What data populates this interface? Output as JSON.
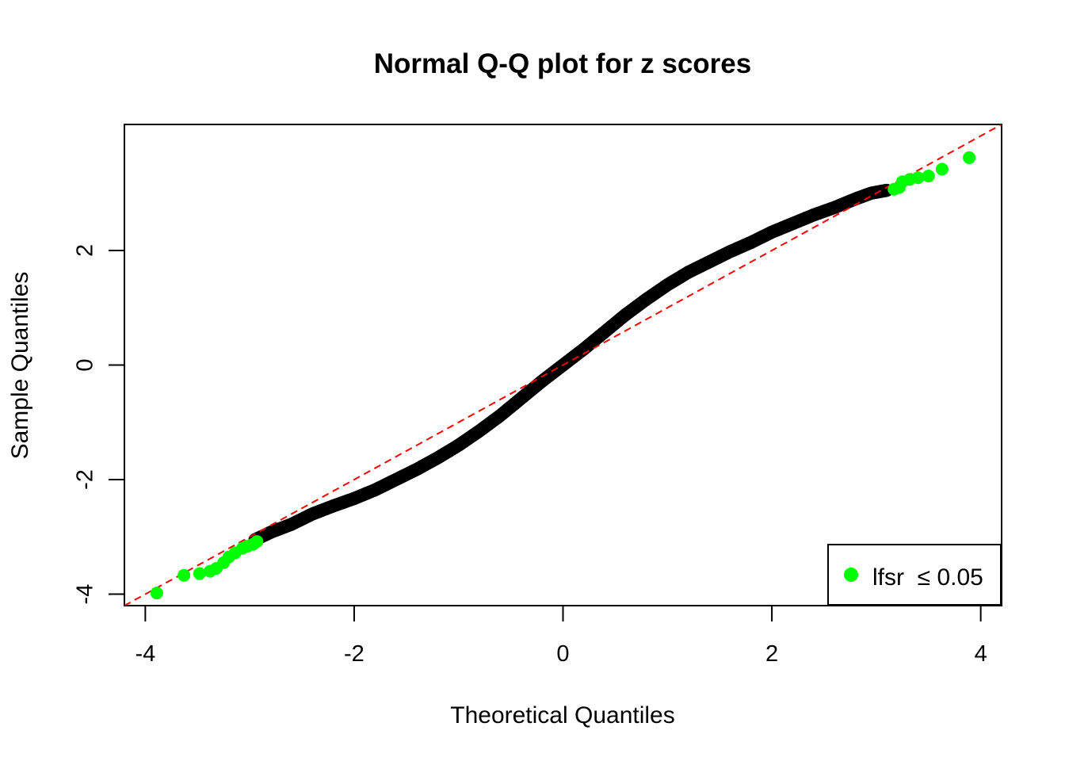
{
  "chart_data": {
    "type": "scatter",
    "title": "Normal Q-Q plot for z scores",
    "xlabel": "Theoretical Quantiles",
    "ylabel": "Sample Quantiles",
    "xlim": [
      -4.2,
      4.2
    ],
    "ylim": [
      -4.2,
      4.2
    ],
    "x_ticks": [
      -4,
      -2,
      0,
      2,
      4
    ],
    "y_ticks": [
      -4,
      -2,
      0,
      2
    ],
    "x_tick_labels": [
      "-4",
      "-2",
      "0",
      "2",
      "4"
    ],
    "y_tick_labels": [
      "-4",
      "-2",
      "0",
      "2"
    ],
    "grid": false,
    "legend": {
      "position": "bottom-right",
      "entries": [
        {
          "label": "lfsr  ≤ 0.05",
          "color": "#00ff00",
          "marker": "filled-circle"
        }
      ]
    },
    "reference_line": {
      "intercept": 0,
      "slope": 1,
      "style": "dashed",
      "color": "#ff0000"
    },
    "series": [
      {
        "color": "#000000",
        "marker": "circle",
        "description_points": "dense curve of points",
        "points": [
          [
            -2.95,
            -3.05
          ],
          [
            -2.8,
            -2.92
          ],
          [
            -2.6,
            -2.78
          ],
          [
            -2.4,
            -2.6
          ],
          [
            -2.2,
            -2.46
          ],
          [
            -2.0,
            -2.33
          ],
          [
            -1.8,
            -2.18
          ],
          [
            -1.6,
            -2.0
          ],
          [
            -1.4,
            -1.82
          ],
          [
            -1.2,
            -1.62
          ],
          [
            -1.0,
            -1.4
          ],
          [
            -0.8,
            -1.15
          ],
          [
            -0.6,
            -0.88
          ],
          [
            -0.4,
            -0.58
          ],
          [
            -0.2,
            -0.28
          ],
          [
            0.0,
            0.0
          ],
          [
            0.2,
            0.28
          ],
          [
            0.4,
            0.58
          ],
          [
            0.6,
            0.88
          ],
          [
            0.8,
            1.15
          ],
          [
            1.0,
            1.4
          ],
          [
            1.2,
            1.62
          ],
          [
            1.4,
            1.8
          ],
          [
            1.6,
            1.98
          ],
          [
            1.8,
            2.14
          ],
          [
            2.0,
            2.32
          ],
          [
            2.2,
            2.47
          ],
          [
            2.4,
            2.62
          ],
          [
            2.6,
            2.75
          ],
          [
            2.8,
            2.9
          ],
          [
            2.95,
            3.0
          ],
          [
            3.1,
            3.05
          ]
        ]
      },
      {
        "name": "lfsr  ≤ 0.05",
        "color": "#00ff00",
        "marker": "filled-circle",
        "points": [
          [
            -3.89,
            -3.98
          ],
          [
            -3.63,
            -3.67
          ],
          [
            -3.48,
            -3.64
          ],
          [
            -3.38,
            -3.6
          ],
          [
            -3.32,
            -3.55
          ],
          [
            -3.25,
            -3.45
          ],
          [
            -3.2,
            -3.35
          ],
          [
            -3.14,
            -3.28
          ],
          [
            -3.07,
            -3.2
          ],
          [
            -3.02,
            -3.16
          ],
          [
            -2.97,
            -3.13
          ],
          [
            -2.93,
            -3.08
          ],
          [
            3.17,
            3.07
          ],
          [
            3.22,
            3.1
          ],
          [
            3.25,
            3.2
          ],
          [
            3.32,
            3.24
          ],
          [
            3.4,
            3.27
          ],
          [
            3.5,
            3.3
          ],
          [
            3.63,
            3.42
          ],
          [
            3.89,
            3.62
          ]
        ]
      }
    ]
  }
}
